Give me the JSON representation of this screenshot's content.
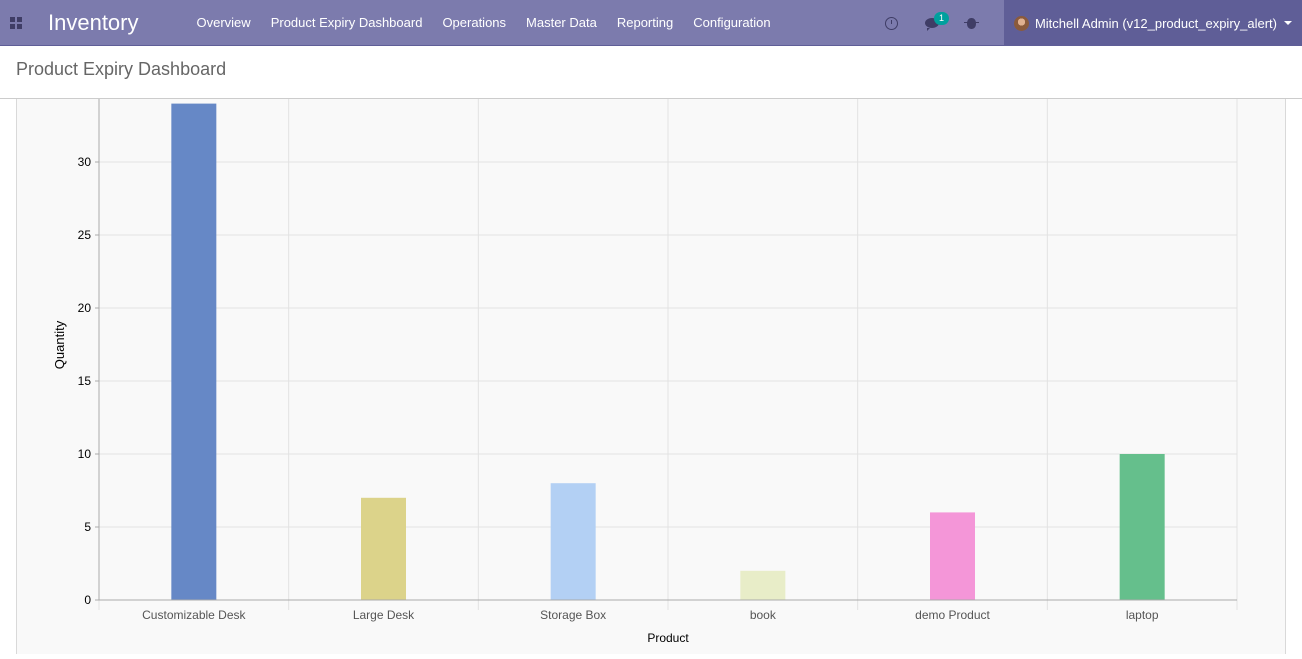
{
  "navbar": {
    "app_title": "Inventory",
    "menu": [
      {
        "label": "Overview"
      },
      {
        "label": "Product Expiry Dashboard"
      },
      {
        "label": "Operations"
      },
      {
        "label": "Master Data"
      },
      {
        "label": "Reporting"
      },
      {
        "label": "Configuration"
      }
    ],
    "systray": {
      "activity_icon": "clock-icon",
      "messaging_icon": "chat-icon",
      "messaging_count": "1",
      "debug_icon": "bug-icon"
    },
    "user": {
      "name": "Mitchell Admin (v12_product_expiry_alert)"
    },
    "colors": {
      "bar": "#7c7bad",
      "user_bg": "#5f5e97",
      "badge": "#00a09d"
    }
  },
  "control_panel": {
    "title": "Product Expiry Dashboard"
  },
  "chart_data": {
    "type": "bar",
    "categories": [
      "Customizable Desk",
      "Large Desk",
      "Storage Box",
      "book",
      "demo Product",
      "laptop"
    ],
    "values": [
      34,
      7,
      8,
      2,
      6,
      10
    ],
    "colors": [
      "#6688c6",
      "#dcd38a",
      "#b3d0f4",
      "#e8edc8",
      "#f496d8",
      "#65bf8c"
    ],
    "xlabel": "Product",
    "ylabel": "Quantity",
    "ylim": [
      0,
      34
    ],
    "yticks": [
      0,
      5,
      10,
      15,
      20,
      25,
      30
    ],
    "grid": true
  }
}
